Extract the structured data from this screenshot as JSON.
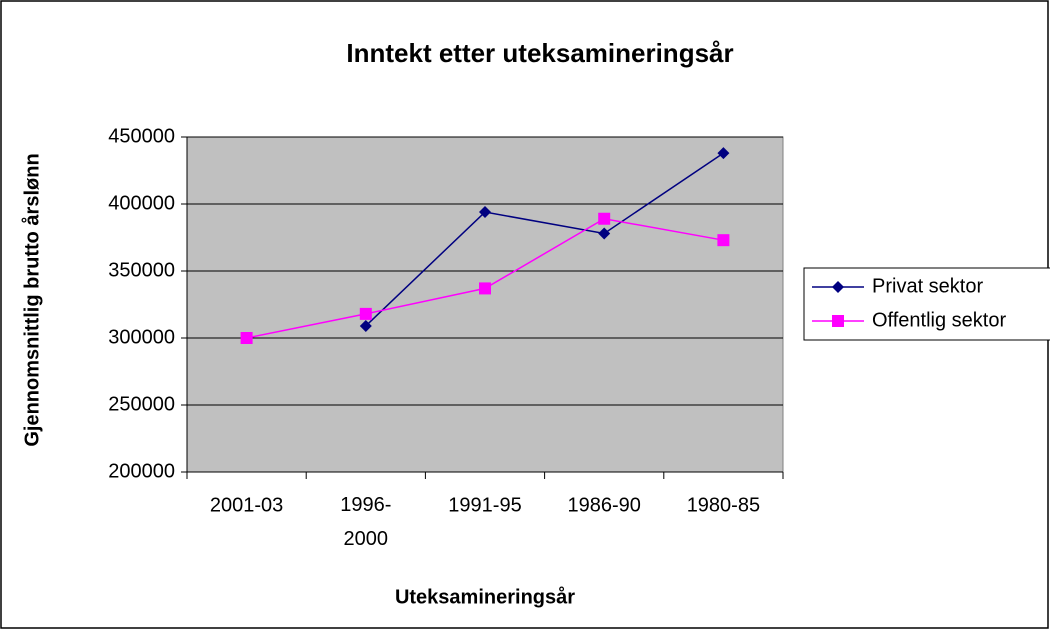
{
  "chart_data": {
    "type": "line",
    "title": "Inntekt etter uteksamineringsår",
    "x_label": "Uteksamineringsår",
    "y_label": "Gjennomsnittlig brutto årslønn",
    "categories": [
      "2001-03",
      "1996-2000",
      "1991-95",
      "1986-90",
      "1980-85"
    ],
    "series": [
      {
        "name": "Privat sektor",
        "color": "#000080",
        "marker": "diamond",
        "values": [
          null,
          309000,
          394000,
          378000,
          438000
        ]
      },
      {
        "name": "Offentlig sektor",
        "color": "#ff00ff",
        "marker": "square",
        "values": [
          300000,
          318000,
          337000,
          389000,
          373000
        ]
      }
    ],
    "ylim": [
      200000,
      450000
    ],
    "yticks": [
      200000,
      250000,
      300000,
      350000,
      400000,
      450000
    ],
    "grid": true,
    "legend": "right",
    "plot_background": "#c0c0c0"
  }
}
